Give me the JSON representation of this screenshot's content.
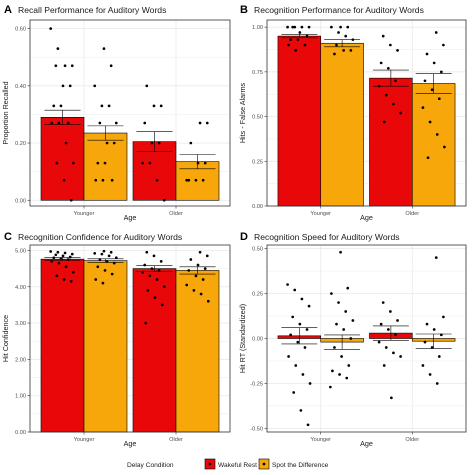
{
  "colors": {
    "wakeful": "#e8080a",
    "spot": "#f7a70a",
    "grid": "#ebebeb",
    "panel_border": "#333333"
  },
  "legend": {
    "title": "Delay Condition",
    "items": [
      {
        "label": "Wakeful Rest",
        "color": "#e8080a"
      },
      {
        "label": "Spot the Difference",
        "color": "#f7a70a"
      }
    ]
  },
  "chart_data": [
    {
      "type": "bar",
      "panel": "A",
      "title": "Recall Performance for Auditory Words",
      "xlabel": "Age",
      "ylabel": "Proportion Recalled",
      "categories": [
        "Younger",
        "Older"
      ],
      "ylim": [
        -0.02,
        0.63
      ],
      "yticks": [
        0.0,
        0.2,
        0.4,
        0.6
      ],
      "ytick_labels": [
        "0.00",
        "0.20",
        "0.40",
        "0.60"
      ],
      "series": [
        {
          "name": "Wakeful Rest",
          "values": [
            0.29,
            0.205
          ],
          "err": [
            0.025,
            0.035
          ],
          "points": [
            [
              0.6,
              0.53,
              0.47,
              0.47,
              0.47,
              0.4,
              0.4,
              0.33,
              0.33,
              0.27,
              0.27,
              0.27,
              0.2,
              0.13,
              0.13,
              0.07,
              0.0
            ],
            [
              0.4,
              0.33,
              0.33,
              0.27,
              0.2,
              0.2,
              0.13,
              0.13,
              0.07,
              0.0
            ]
          ]
        },
        {
          "name": "Spot the Difference",
          "values": [
            0.235,
            0.135
          ],
          "err": [
            0.025,
            0.025
          ],
          "points": [
            [
              0.53,
              0.47,
              0.4,
              0.33,
              0.33,
              0.27,
              0.27,
              0.2,
              0.2,
              0.13,
              0.13,
              0.07,
              0.07,
              0.07
            ],
            [
              0.27,
              0.27,
              0.2,
              0.13,
              0.13,
              0.07,
              0.07,
              0.07,
              0.07
            ]
          ]
        }
      ]
    },
    {
      "type": "bar",
      "panel": "B",
      "title": "Recognition Performance for Auditory Words",
      "xlabel": "Age",
      "ylabel": "Hits - False Alarms",
      "categories": [
        "Younger",
        "Older"
      ],
      "ylim": [
        0.0,
        1.04
      ],
      "yticks": [
        0.0,
        0.25,
        0.5,
        0.75,
        1.0
      ],
      "ytick_labels": [
        "0.00",
        "0.25",
        "0.50",
        "0.75",
        "1.00"
      ],
      "series": [
        {
          "name": "Wakeful Rest",
          "values": [
            0.95,
            0.715
          ],
          "err": [
            0.01,
            0.045
          ],
          "points": [
            [
              1.0,
              1.0,
              1.0,
              1.0,
              1.0,
              0.97,
              0.95,
              0.93,
              0.93,
              0.9,
              0.9,
              0.87
            ],
            [
              0.95,
              0.9,
              0.87,
              0.8,
              0.77,
              0.7,
              0.67,
              0.62,
              0.57,
              0.52,
              0.47
            ]
          ]
        },
        {
          "name": "Spot the Difference",
          "values": [
            0.91,
            0.685
          ],
          "err": [
            0.02,
            0.055
          ],
          "points": [
            [
              1.0,
              1.0,
              1.0,
              0.97,
              0.95,
              0.93,
              0.9,
              0.87,
              0.87,
              0.85
            ],
            [
              0.97,
              0.9,
              0.85,
              0.8,
              0.75,
              0.7,
              0.65,
              0.6,
              0.55,
              0.47,
              0.4,
              0.33,
              0.27
            ]
          ]
        }
      ]
    },
    {
      "type": "bar",
      "panel": "C",
      "title": "Recognition Confidence for Auditory Words",
      "xlabel": "Age",
      "ylabel": "Hit Confidence",
      "categories": [
        "Younger",
        "Older"
      ],
      "ylim": [
        0.0,
        5.15
      ],
      "yticks": [
        0,
        1,
        2,
        3,
        4,
        5
      ],
      "ytick_labels": [
        "0.00",
        "1.00",
        "2.00",
        "3.00",
        "4.00",
        "5.00"
      ],
      "series": [
        {
          "name": "Wakeful Rest",
          "values": [
            4.76,
            4.5
          ],
          "err": [
            0.04,
            0.08
          ],
          "points": [
            [
              4.97,
              4.95,
              4.93,
              4.9,
              4.88,
              4.85,
              4.82,
              4.8,
              4.78,
              4.75,
              4.7,
              4.65,
              4.55,
              4.4,
              4.3,
              4.2,
              4.15
            ],
            [
              4.95,
              4.85,
              4.7,
              4.6,
              4.5,
              4.45,
              4.4,
              4.3,
              4.2,
              4.0,
              3.9,
              3.7,
              3.5,
              3.0
            ]
          ]
        },
        {
          "name": "Spot the Difference",
          "values": [
            4.72,
            4.45
          ],
          "err": [
            0.05,
            0.1
          ],
          "points": [
            [
              4.98,
              4.95,
              4.92,
              4.9,
              4.85,
              4.8,
              4.75,
              4.7,
              4.65,
              4.55,
              4.45,
              4.35,
              4.2,
              4.1
            ],
            [
              4.95,
              4.85,
              4.75,
              4.6,
              4.5,
              4.45,
              4.3,
              4.2,
              4.05,
              3.9,
              3.8,
              3.6
            ]
          ]
        }
      ]
    },
    {
      "type": "bar",
      "panel": "D",
      "title": "Recognition Speed for Auditory Words",
      "xlabel": "Age",
      "ylabel": "Hit RT (Standardized)",
      "categories": [
        "Younger",
        "Older"
      ],
      "ylim": [
        -0.52,
        0.52
      ],
      "yticks": [
        -0.5,
        -0.25,
        0.0,
        0.25,
        0.5
      ],
      "ytick_labels": [
        "-0.50",
        "-0.25",
        "0.00",
        "0.25",
        "0.50"
      ],
      "series": [
        {
          "name": "Wakeful Rest",
          "values": [
            0.015,
            0.03
          ],
          "err": [
            0.045,
            0.04
          ],
          "points": [
            [
              0.3,
              0.27,
              0.22,
              0.18,
              0.12,
              0.08,
              0.05,
              0.02,
              -0.02,
              -0.05,
              -0.1,
              -0.15,
              -0.2,
              -0.25,
              -0.3,
              -0.4,
              -0.48
            ],
            [
              0.2,
              0.15,
              0.1,
              0.08,
              0.05,
              0.02,
              -0.02,
              -0.05,
              -0.08,
              -0.1,
              -0.15,
              -0.33
            ]
          ]
        },
        {
          "name": "Spot the Difference",
          "values": [
            -0.02,
            -0.015
          ],
          "err": [
            0.04,
            0.04
          ],
          "points": [
            [
              0.48,
              0.28,
              0.25,
              0.2,
              0.15,
              0.1,
              0.08,
              0.05,
              0.0,
              -0.05,
              -0.1,
              -0.15,
              -0.18,
              -0.2,
              -0.22,
              -0.27
            ],
            [
              0.45,
              0.12,
              0.08,
              0.05,
              0.02,
              -0.02,
              -0.05,
              -0.1,
              -0.15,
              -0.2,
              -0.25
            ]
          ]
        }
      ]
    }
  ]
}
